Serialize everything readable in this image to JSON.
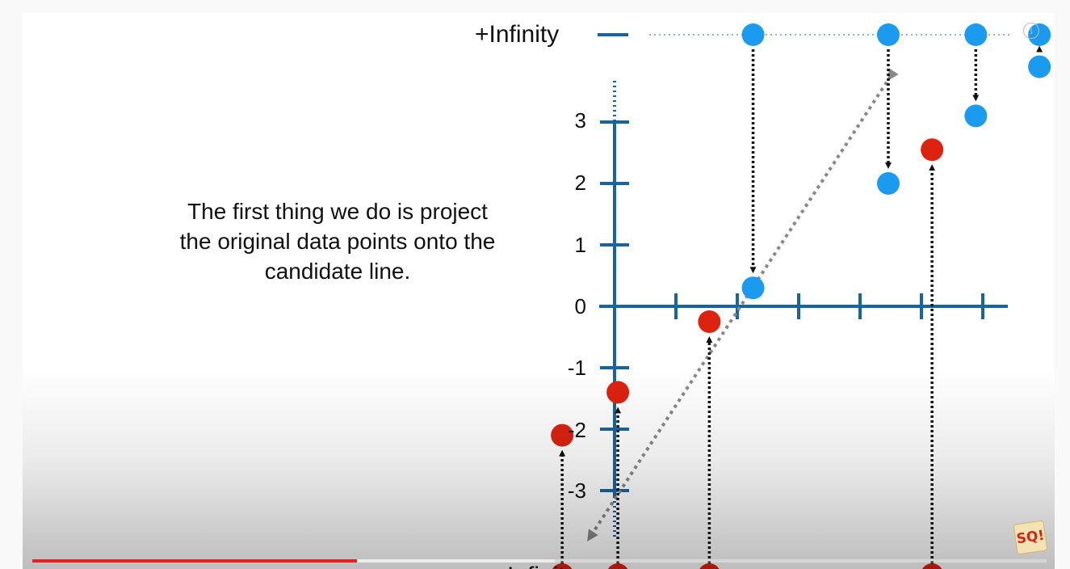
{
  "caption": "The first thing we do is project the original data points onto the candidate line.",
  "overlay": {
    "info_icon": "info-icon",
    "logo_text": "SQ!",
    "logo_icon": "statquest-logo-icon"
  },
  "progress": {
    "played": 0.32,
    "buffered": 0.515
  },
  "colors": {
    "axis": "#1764a0",
    "blue_point": "#1b9bf0",
    "red_point": "#dd2210",
    "projection_line": "#888888",
    "arrow": "#111111",
    "progress_played": "#e52222"
  },
  "chart_data": {
    "type": "scatter",
    "title": "",
    "xlabel": "",
    "ylabel": "",
    "ylim": [
      -3,
      3
    ],
    "yticks": [
      "3",
      "2",
      "1",
      "0",
      "-1",
      "-2",
      "-3"
    ],
    "infinity_labels": {
      "top": "+Infinity",
      "bottom": "-Infinity"
    },
    "series": [
      {
        "color": "blue",
        "projected_y": [
          0.3,
          2.0,
          3.1,
          3.9,
          5.0
        ]
      },
      {
        "color": "red",
        "projected_y": [
          -2.1,
          -1.4,
          -0.25,
          2.55
        ]
      }
    ]
  }
}
